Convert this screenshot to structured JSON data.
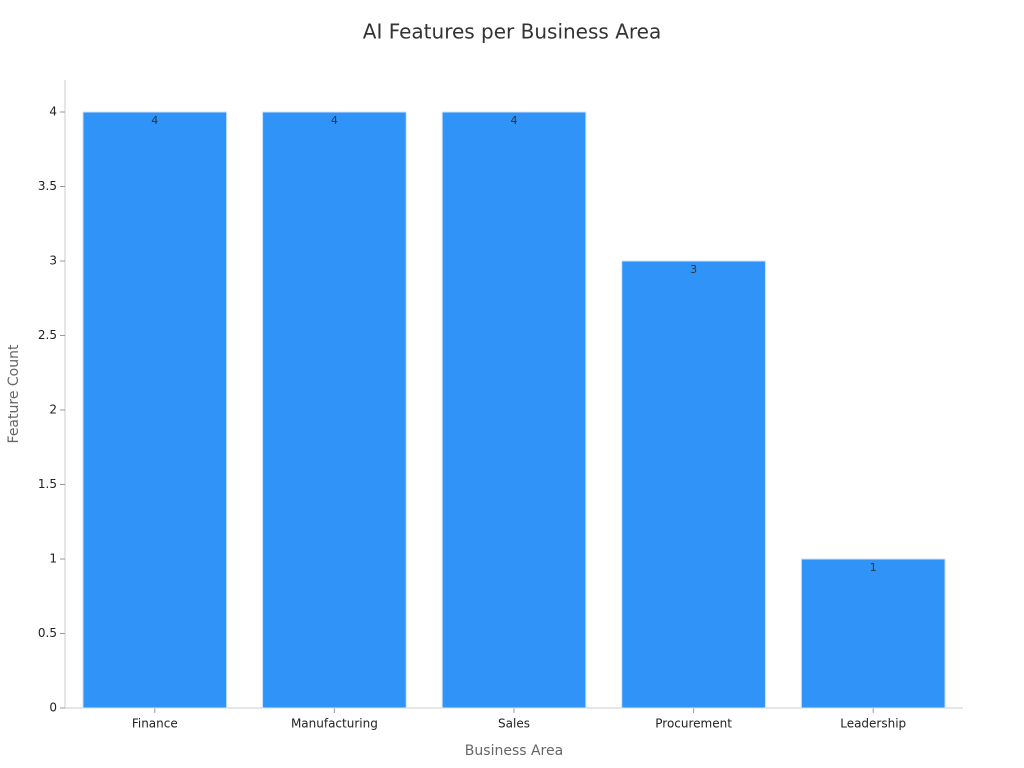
{
  "chart_data": {
    "type": "bar",
    "title": "AI Features per Business Area",
    "x_label": "Business Area",
    "y_label": "Feature Count",
    "categories": [
      "Finance",
      "Manufacturing",
      "Sales",
      "Procurement",
      "Leadership"
    ],
    "values": [
      4,
      4,
      4,
      3,
      1
    ],
    "color": "#2f93f8",
    "ylim": [
      0,
      4.2
    ],
    "yticks": [
      0,
      0.5,
      1,
      1.5,
      2,
      2.5,
      3,
      3.5,
      4
    ],
    "grid": false
  }
}
